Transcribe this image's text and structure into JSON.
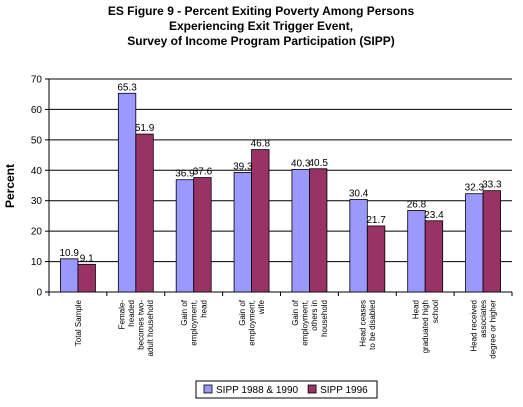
{
  "chart_data": {
    "type": "bar",
    "title_lines": [
      "ES Figure 9 - Percent Exiting Poverty Among Persons",
      "Experiencing Exit Trigger Event,",
      "Survey of Income Program Participation (SIPP)"
    ],
    "xlabel": "",
    "ylabel": "Percent",
    "ylim": [
      0,
      70
    ],
    "yticks": [
      0,
      10,
      20,
      30,
      40,
      50,
      60,
      70
    ],
    "grid": true,
    "legend_position": "bottom",
    "categories": [
      [
        "Total Sample"
      ],
      [
        "Female-",
        "headed",
        "becomes two-",
        "adult household"
      ],
      [
        "Gain of",
        "employment,",
        "head"
      ],
      [
        "Gain of",
        "employment,",
        "wife"
      ],
      [
        "Gain of",
        "employment,",
        "others in",
        "household"
      ],
      [
        "Head ceases",
        "to be disabled"
      ],
      [
        "Head",
        "graduated high",
        "school"
      ],
      [
        "Head received",
        "associates",
        "degree or higher"
      ]
    ],
    "series": [
      {
        "name": "SIPP 1988 & 1990",
        "color": "#9999ff",
        "values": [
          10.9,
          65.3,
          36.9,
          39.3,
          40.3,
          30.4,
          26.8,
          32.3
        ]
      },
      {
        "name": "SIPP 1996",
        "color": "#993366",
        "values": [
          9.1,
          51.9,
          37.6,
          46.8,
          40.5,
          21.7,
          23.4,
          33.3
        ]
      }
    ]
  }
}
